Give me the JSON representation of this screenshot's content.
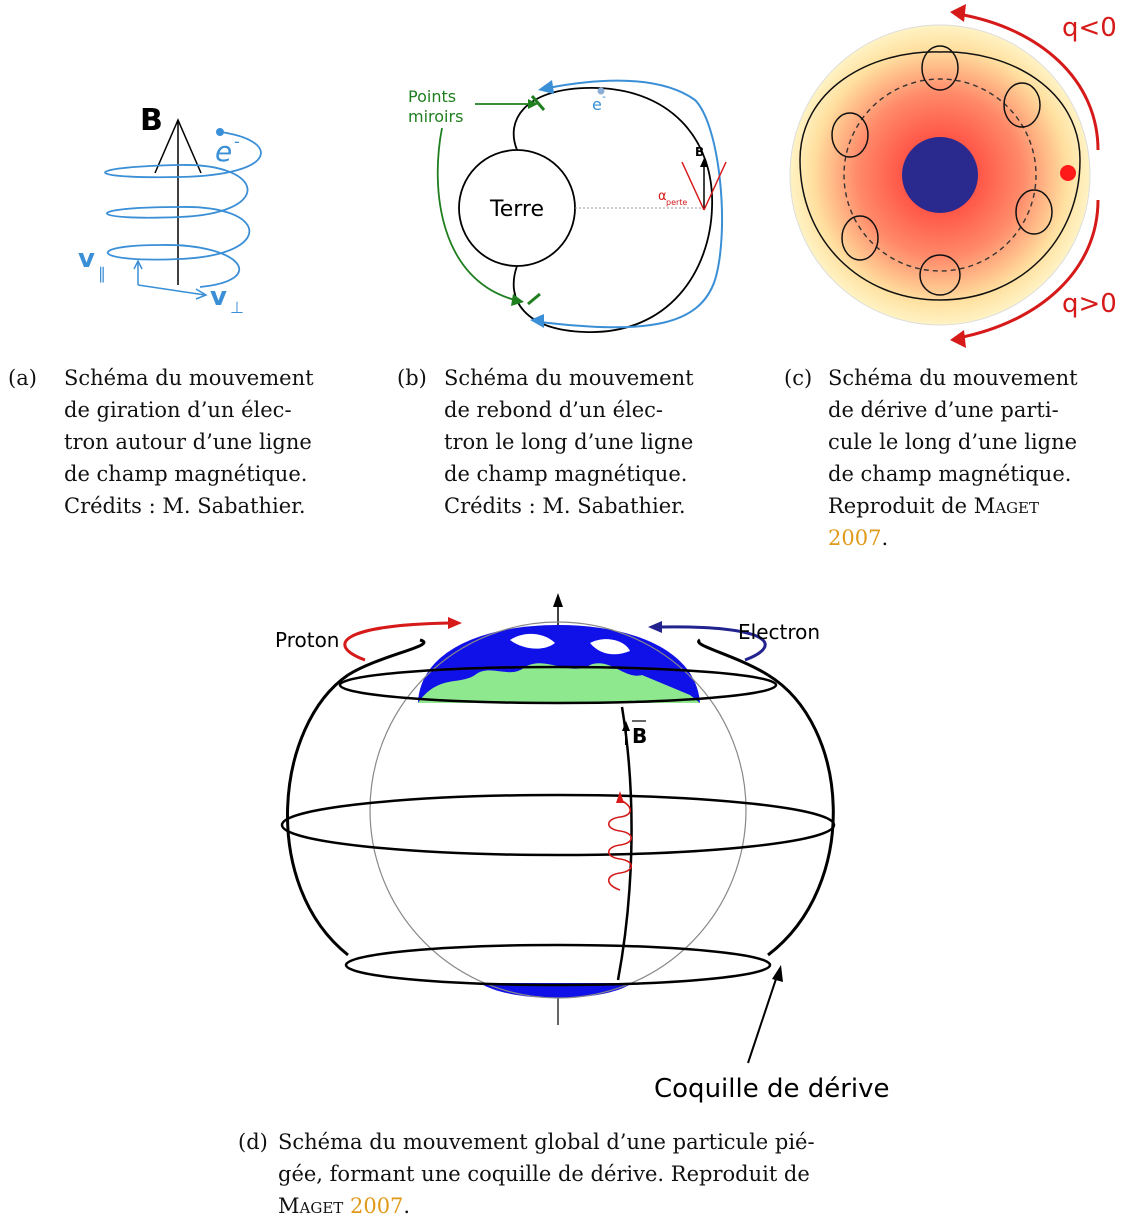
{
  "figures": {
    "a": {
      "labels": {
        "B": "B",
        "e": "e",
        "e_sup": "-",
        "v_par": "v",
        "v_par_sub": "∥",
        "v_perp": "v",
        "v_perp_sub": "⊥"
      },
      "caption": {
        "label": "(a)",
        "lines": [
          "Schéma du mouvement",
          "de giration d’un élec-",
          "tron autour d’une ligne",
          "de champ magnétique.",
          "Crédits : M. Sabathier."
        ]
      }
    },
    "b": {
      "labels": {
        "points1": "Points",
        "points2": "miroirs",
        "e": "e",
        "e_sup": "-",
        "terre": "Terre",
        "B": "B",
        "alpha": "α",
        "alpha_sub": "perte"
      },
      "caption": {
        "label": "(b)",
        "lines": [
          "Schéma du mouvement",
          "de rebond d’un élec-",
          "tron le long d’une ligne",
          "de champ magnétique.",
          "Crédits : M. Sabathier."
        ]
      }
    },
    "c": {
      "labels": {
        "q_neg": "q<0",
        "q_pos": "q>0"
      },
      "caption": {
        "label": "(c)",
        "lines": [
          "Schéma du mouvement",
          "de dérive d’une parti-",
          "cule le long d’une ligne",
          "de champ magnétique."
        ],
        "last_prefix": "Reproduit de",
        "author": "Maget",
        "year": "2007",
        "year_suffix": "."
      }
    },
    "d": {
      "labels": {
        "proton": "Proton",
        "electron": "Electron",
        "B": "B",
        "coquille": "Coquille de dérive"
      },
      "caption": {
        "label": "(d)",
        "lines": [
          "Schéma du mouvement global d’une particule pié-",
          "gée, formant une coquille de dérive. Reproduit de"
        ],
        "author": "Maget",
        "year": "2007",
        "year_suffix": "."
      }
    }
  },
  "colors": {
    "blue": "#3a8fd6",
    "green": "#1f7f1f",
    "red": "#d61a1a",
    "cite": "#e09a1a",
    "navy": "#23238f",
    "land": "#8ee88e",
    "ocean": "#1010e8"
  }
}
